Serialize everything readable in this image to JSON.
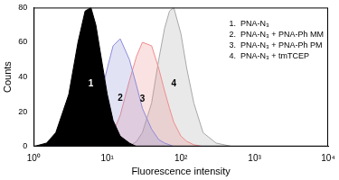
{
  "chart_data": {
    "type": "line",
    "x_label": "Fluorescence intensity",
    "y_label": "Counts",
    "log": "x",
    "grid": false,
    "xlim": [
      1,
      10000
    ],
    "xticks": [
      {
        "value": 1,
        "label": "10⁰"
      },
      {
        "value": 10,
        "label": "10¹"
      },
      {
        "value": 100,
        "label": "10²"
      },
      {
        "value": 1000,
        "label": "10³"
      },
      {
        "value": 10000,
        "label": "10⁴"
      }
    ],
    "ylim": [
      0,
      80
    ],
    "yticks": [
      0,
      20,
      40,
      60,
      80
    ],
    "x": [
      1,
      1.5,
      2,
      3,
      4,
      5,
      6,
      7,
      8,
      10,
      12,
      15,
      20,
      25,
      30,
      40,
      50,
      60,
      70,
      80,
      100,
      120,
      150,
      200,
      300,
      500,
      1000,
      10000
    ],
    "series": [
      {
        "name": "1",
        "color": "#000000",
        "values": [
          0,
          2,
          8,
          30,
          60,
          78,
          80,
          70,
          55,
          30,
          15,
          6,
          2,
          0,
          0,
          0,
          0,
          0,
          0,
          0,
          0,
          0,
          0,
          0,
          0,
          0,
          0,
          0
        ]
      },
      {
        "name": "2",
        "color": "#8c8cd8",
        "values": [
          0,
          0,
          0,
          0,
          2,
          5,
          10,
          18,
          28,
          45,
          58,
          62,
          50,
          35,
          22,
          10,
          4,
          2,
          1,
          0,
          0,
          0,
          0,
          0,
          0,
          0,
          0,
          0
        ]
      },
      {
        "name": "3",
        "color": "#f08c8c",
        "values": [
          0,
          0,
          0,
          0,
          0,
          0,
          0,
          0,
          0,
          3,
          8,
          18,
          38,
          52,
          60,
          58,
          45,
          32,
          22,
          14,
          6,
          3,
          1,
          0,
          0,
          0,
          0,
          0
        ]
      },
      {
        "name": "4",
        "color": "#a8a8a8",
        "values": [
          0,
          0,
          0,
          0,
          0,
          0,
          0,
          0,
          0,
          0,
          0,
          0,
          0,
          3,
          8,
          25,
          50,
          68,
          78,
          80,
          65,
          45,
          25,
          8,
          2,
          0,
          0,
          0
        ]
      }
    ],
    "annotations": [
      "1.  PNA-N₃",
      "2.  PNA-N₃ + PNA-Ph MM",
      "3.  PNA-N₃ + PNA-Ph PM",
      "4.  PNA-N₃ + tmTCEP"
    ]
  }
}
